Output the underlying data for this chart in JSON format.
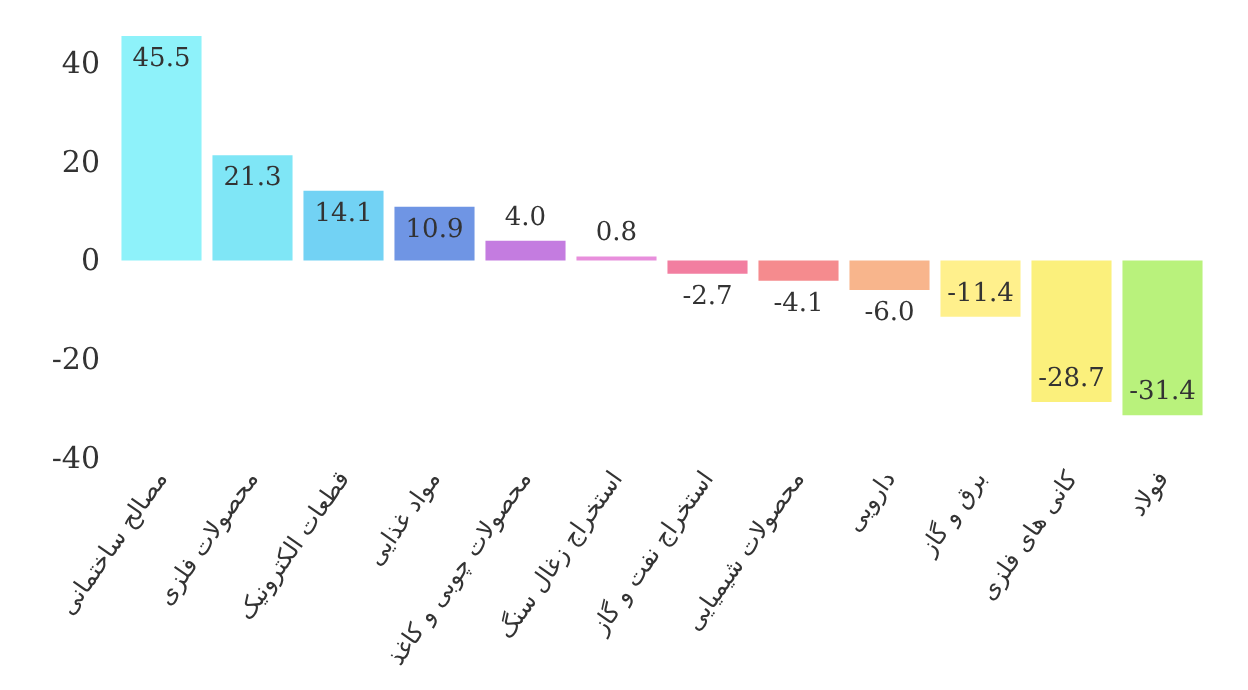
{
  "chart_data": {
    "type": "bar",
    "categories": [
      "مصالح ساختمانی",
      "محصولات فلزی",
      "قطعات الکترونیک",
      "مواد غذایی",
      "محصولات چوبی و کاغذ",
      "استخراج زغال سنگ",
      "استخراج نفت و گاز",
      "محصولات شیمیایی",
      "دارویی",
      "برق و گاز",
      "کانی های فلزی",
      "فولاد"
    ],
    "values": [
      45.5,
      21.3,
      14.1,
      10.9,
      4.0,
      0.8,
      -2.7,
      -4.1,
      -6.0,
      -11.4,
      -28.7,
      -31.4
    ],
    "colors": [
      "#8ef2fa",
      "#7fe6f6",
      "#72d2f4",
      "#6f95e4",
      "#c47ce0",
      "#e88fdc",
      "#f27ea0",
      "#f58b8e",
      "#f8b58c",
      "#fff08c",
      "#fbf07c",
      "#b9f27c"
    ],
    "value_labels": [
      "45.5",
      "21.3",
      "14.1",
      "10.9",
      "4.0",
      "0.8",
      "-2.7",
      "-4.1",
      "-6.0",
      "-11.4",
      "-28.7",
      "-31.4"
    ],
    "ylim": [
      -40,
      45.5
    ],
    "yticks": [
      -40,
      -20,
      0,
      20,
      40
    ],
    "grid": false
  }
}
